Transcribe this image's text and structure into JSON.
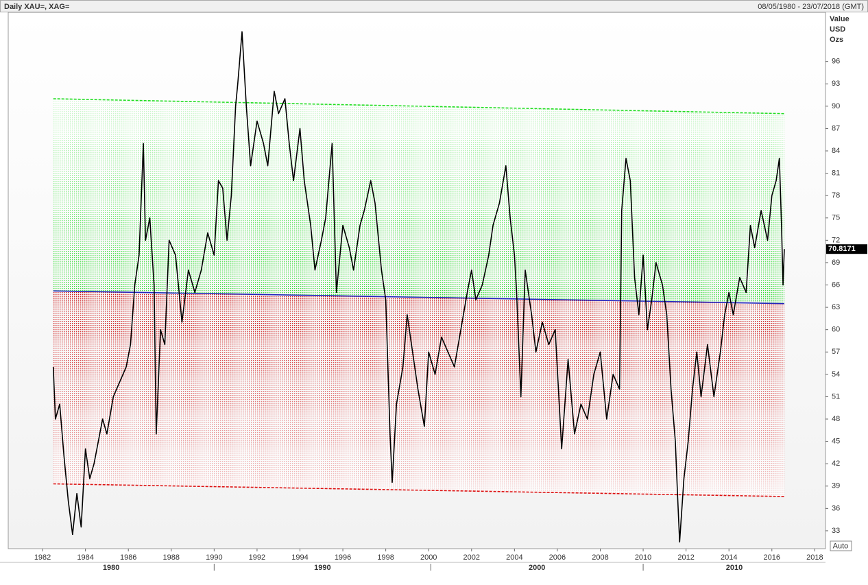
{
  "chart_data": {
    "type": "line",
    "title": "Daily XAU=, XAG=",
    "date_range": "08/05/1980 - 23/07/2018 (GMT)",
    "axis_header": [
      "Value",
      "USD",
      "Ozs"
    ],
    "last_value_label": "70.8171",
    "scale_mode": "Auto",
    "color": "#000000",
    "x": [
      1982.5,
      1982.6,
      1982.8,
      1983.0,
      1983.2,
      1983.4,
      1983.6,
      1983.8,
      1984.0,
      1984.2,
      1984.4,
      1984.6,
      1984.8,
      1985.0,
      1985.3,
      1985.6,
      1985.9,
      1986.1,
      1986.3,
      1986.5,
      1986.7,
      1986.8,
      1987.0,
      1987.2,
      1987.3,
      1987.5,
      1987.7,
      1987.9,
      1988.2,
      1988.4,
      1988.5,
      1988.8,
      1989.1,
      1989.4,
      1989.7,
      1990.0,
      1990.2,
      1990.4,
      1990.6,
      1990.8,
      1991.0,
      1991.1,
      1991.3,
      1991.5,
      1991.7,
      1992.0,
      1992.3,
      1992.5,
      1992.8,
      1993.0,
      1993.3,
      1993.5,
      1993.7,
      1994.0,
      1994.2,
      1994.5,
      1994.7,
      1995.0,
      1995.2,
      1995.5,
      1995.7,
      1996.0,
      1996.3,
      1996.5,
      1996.8,
      1997.0,
      1997.3,
      1997.5,
      1997.8,
      1998.0,
      1998.2,
      1998.3,
      1998.5,
      1998.8,
      1999.0,
      1999.2,
      1999.5,
      1999.8,
      2000.0,
      2000.3,
      2000.6,
      2000.9,
      2001.2,
      2001.5,
      2001.8,
      2002.0,
      2002.2,
      2002.5,
      2002.8,
      2003.0,
      2003.3,
      2003.6,
      2003.8,
      2004.0,
      2004.1,
      2004.3,
      2004.5,
      2004.8,
      2005.0,
      2005.3,
      2005.6,
      2005.9,
      2006.2,
      2006.5,
      2006.8,
      2007.1,
      2007.4,
      2007.7,
      2008.0,
      2008.3,
      2008.6,
      2008.9,
      2009.0,
      2009.2,
      2009.4,
      2009.6,
      2009.8,
      2010.0,
      2010.2,
      2010.4,
      2010.6,
      2010.9,
      2011.1,
      2011.3,
      2011.5,
      2011.6,
      2011.7,
      2011.9,
      2012.1,
      2012.3,
      2012.5,
      2012.7,
      2013.0,
      2013.3,
      2013.6,
      2013.8,
      2014.0,
      2014.2,
      2014.5,
      2014.8,
      2015.0,
      2015.2,
      2015.5,
      2015.8,
      2016.0,
      2016.2,
      2016.35,
      2016.45,
      2016.52,
      2016.58
    ],
    "values": [
      55,
      48,
      50,
      43,
      37,
      32.5,
      38,
      33.5,
      44,
      40,
      42,
      45,
      48,
      46,
      51,
      53,
      55,
      58,
      66,
      70,
      85,
      72,
      75,
      66,
      46,
      60,
      58,
      72,
      70,
      64,
      61,
      68,
      65,
      68,
      73,
      70,
      80,
      79,
      72,
      78,
      90,
      93,
      100,
      90,
      82,
      88,
      85,
      82,
      92,
      89,
      91,
      85,
      80,
      87,
      80,
      74,
      68,
      72,
      75,
      85,
      65,
      74,
      71,
      68,
      74,
      76,
      80,
      77,
      68,
      64,
      46,
      39.5,
      50,
      55,
      62,
      58,
      52,
      47,
      57,
      54,
      59,
      57,
      55,
      60,
      65,
      68,
      64,
      66,
      70,
      74,
      77,
      82,
      75,
      70,
      65,
      51,
      68,
      62,
      57,
      61,
      58,
      60,
      44,
      56,
      46,
      50,
      48,
      54,
      57,
      48,
      54,
      52,
      76,
      83,
      80,
      67,
      62,
      70,
      60,
      64,
      69,
      66,
      62,
      52,
      45,
      38,
      31.5,
      40,
      45,
      52,
      57,
      51,
      58,
      51,
      57,
      62,
      65,
      62,
      67,
      65,
      74,
      71,
      76,
      72,
      78,
      80,
      83,
      74,
      66,
      70.8171
    ],
    "upper_band": {
      "color": "#22dd22",
      "x": [
        1982.5,
        2016.58
      ],
      "values": [
        91,
        89
      ]
    },
    "mean_band": {
      "color": "#2222bb",
      "x": [
        1982.5,
        2016.58
      ],
      "values": [
        65.2,
        63.5
      ]
    },
    "lower_band": {
      "color": "#dd1111",
      "x": [
        1982.5,
        2016.58
      ],
      "values": [
        39.3,
        37.6
      ]
    },
    "xlim": [
      1980.4,
      2018.5
    ],
    "xticks": [
      1982,
      1984,
      1986,
      1988,
      1990,
      1992,
      1994,
      1996,
      1998,
      2000,
      2002,
      2004,
      2006,
      2008,
      2010,
      2012,
      2014,
      2016,
      2018
    ],
    "decade_dividers": [
      1990,
      2000.1,
      2010
    ],
    "decade_labels": [
      "1980",
      "1990",
      "2000",
      "2010"
    ],
    "ylim": [
      30.6,
      102.6
    ],
    "yticks": [
      33,
      36,
      39,
      42,
      45,
      48,
      51,
      54,
      57,
      60,
      63,
      66,
      69,
      72,
      75,
      78,
      81,
      84,
      87,
      90,
      93,
      96
    ]
  }
}
